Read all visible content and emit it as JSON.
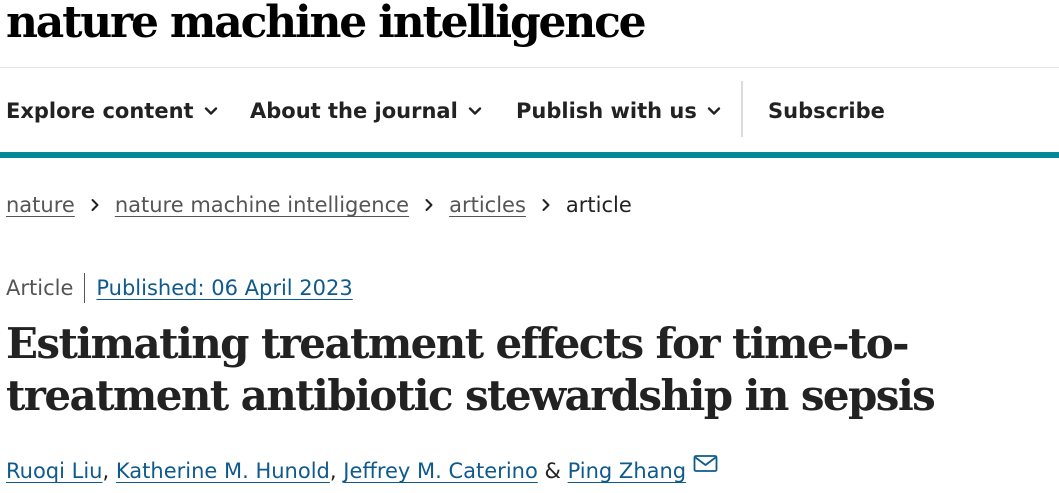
{
  "brand": {
    "logo_text": "nature machine intelligence"
  },
  "nav": {
    "items": [
      {
        "label": "Explore content",
        "icon": "chevron-down-icon"
      },
      {
        "label": "About the journal",
        "icon": "chevron-down-icon"
      },
      {
        "label": "Publish with us",
        "icon": "chevron-down-icon"
      }
    ],
    "subscribe_label": "Subscribe"
  },
  "breadcrumb": {
    "items": [
      "nature",
      "nature machine intelligence",
      "articles"
    ],
    "current": "article",
    "separator_icon": "chevron-right-icon"
  },
  "article": {
    "type": "Article",
    "published": "Published: 06 April 2023",
    "title": "Estimating treatment effects for time-to-treatment antibiotic stewardship in sepsis",
    "authors": [
      "Ruoqi Liu",
      "Katherine M. Hunold",
      "Jeffrey M. Caterino",
      "Ping Zhang"
    ],
    "author_separator": ",",
    "author_and": "&",
    "contact_icon": "mail-icon"
  },
  "colors": {
    "accent_rule": "#01899a",
    "link": "#0f5a8c",
    "text": "#222222",
    "muted": "#555555"
  }
}
